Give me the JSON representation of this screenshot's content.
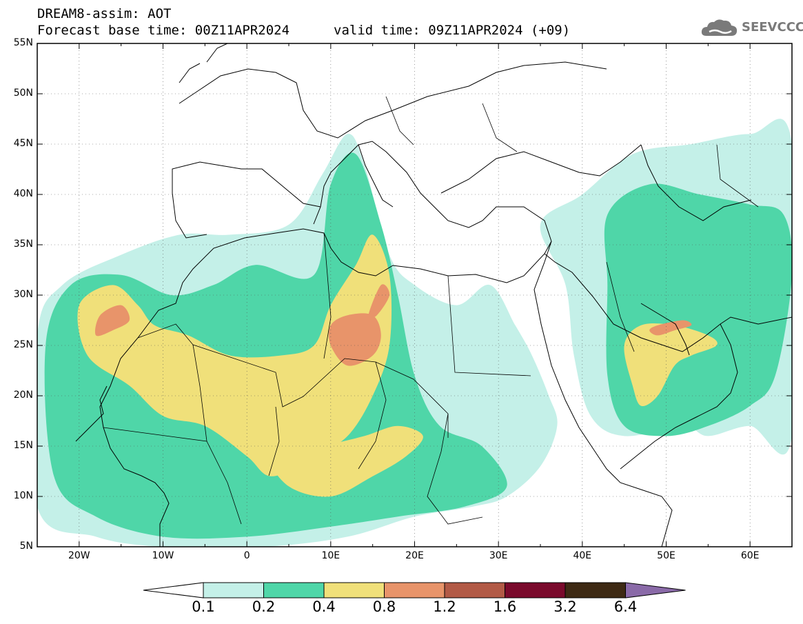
{
  "title": {
    "line1": "DREAM8-assim: AOT",
    "line2_base": "Forecast base time: 00Z11APR2024",
    "line2_valid": "valid time: 09Z11APR2024 (+09)"
  },
  "logo": {
    "text": "SEEVCCC"
  },
  "axes": {
    "lat_labels": [
      "55N",
      "50N",
      "45N",
      "40N",
      "35N",
      "30N",
      "25N",
      "20N",
      "15N",
      "10N",
      "5N"
    ],
    "lon_labels": [
      "20W",
      "10W",
      "0",
      "10E",
      "20E",
      "30E",
      "40E",
      "50E",
      "60E"
    ],
    "lat_range": [
      5,
      55
    ],
    "lon_range": [
      -25,
      65
    ]
  },
  "colorbar": {
    "labels": [
      "0.1",
      "0.2",
      "0.4",
      "0.8",
      "1.2",
      "1.6",
      "3.2",
      "6.4"
    ],
    "colors": [
      "#c4f0e8",
      "#4fd6a8",
      "#f0e07a",
      "#e8946a",
      "#b25a46",
      "#7a0a2c",
      "#3e2a14",
      "#8a6aa8"
    ],
    "under_color": "#ffffff",
    "over_color": "#8a6aa8"
  },
  "chart_data": {
    "type": "heatmap",
    "variable": "AOT",
    "lon_range": [
      -25,
      65
    ],
    "lat_range": [
      5,
      55
    ],
    "levels": [
      0.1,
      0.2,
      0.4,
      0.8,
      1.2,
      1.6,
      3.2,
      6.4
    ],
    "regions": [
      {
        "level": 0.1,
        "polygon": [
          [
            -25,
            26
          ],
          [
            -22,
            31
          ],
          [
            -15,
            34
          ],
          [
            -8,
            36
          ],
          [
            -2,
            36
          ],
          [
            5,
            37
          ],
          [
            9,
            42
          ],
          [
            12,
            46
          ],
          [
            14,
            43
          ],
          [
            17,
            34
          ],
          [
            20,
            31
          ],
          [
            25,
            29
          ],
          [
            29,
            31
          ],
          [
            32,
            27
          ],
          [
            34,
            24
          ],
          [
            36,
            20
          ],
          [
            37,
            17
          ],
          [
            35,
            13
          ],
          [
            31,
            10
          ],
          [
            27,
            9
          ],
          [
            20,
            8
          ],
          [
            12,
            6
          ],
          [
            2,
            5
          ],
          [
            -10,
            5
          ],
          [
            -18,
            6
          ],
          [
            -25,
            9
          ]
        ]
      },
      {
        "level": 0.1,
        "polygon": [
          [
            40,
            40
          ],
          [
            46,
            44
          ],
          [
            53,
            45
          ],
          [
            60,
            46
          ],
          [
            65,
            45
          ],
          [
            65,
            16
          ],
          [
            60,
            17
          ],
          [
            55,
            16
          ],
          [
            52,
            17
          ],
          [
            45,
            16
          ],
          [
            41,
            18
          ],
          [
            39,
            24
          ],
          [
            38,
            31
          ],
          [
            35,
            37
          ]
        ]
      },
      {
        "level": 0.2,
        "polygon": [
          [
            -24,
            25
          ],
          [
            -21,
            31
          ],
          [
            -15,
            32
          ],
          [
            -9,
            30
          ],
          [
            -4,
            31
          ],
          [
            1,
            33
          ],
          [
            8,
            32
          ],
          [
            10,
            41
          ],
          [
            13,
            44
          ],
          [
            16,
            37
          ],
          [
            18,
            30
          ],
          [
            20,
            22
          ],
          [
            23,
            17
          ],
          [
            28,
            15
          ],
          [
            31,
            11
          ],
          [
            26,
            9
          ],
          [
            18,
            8
          ],
          [
            10,
            7
          ],
          [
            0,
            6
          ],
          [
            -10,
            6
          ],
          [
            -18,
            8
          ],
          [
            -23,
            12
          ]
        ]
      },
      {
        "level": 0.2,
        "polygon": [
          [
            43,
            38
          ],
          [
            48,
            41
          ],
          [
            54,
            40
          ],
          [
            60,
            39
          ],
          [
            64,
            38
          ],
          [
            65,
            32
          ],
          [
            63,
            22
          ],
          [
            60,
            19
          ],
          [
            55,
            17
          ],
          [
            50,
            16
          ],
          [
            45,
            17
          ],
          [
            43,
            22
          ],
          [
            43,
            31
          ]
        ]
      },
      {
        "level": 0.4,
        "polygon": [
          [
            -19,
            24
          ],
          [
            -20,
            29
          ],
          [
            -16,
            31
          ],
          [
            -13,
            29
          ],
          [
            -11,
            27
          ],
          [
            -7,
            26
          ],
          [
            -2,
            24
          ],
          [
            4,
            24
          ],
          [
            8,
            25
          ],
          [
            10,
            29
          ],
          [
            13,
            33
          ],
          [
            15,
            36
          ],
          [
            17,
            32
          ],
          [
            17,
            25
          ],
          [
            15,
            20
          ],
          [
            12,
            16
          ],
          [
            8,
            14
          ],
          [
            3,
            12
          ],
          [
            0,
            14
          ],
          [
            -5,
            17
          ],
          [
            -10,
            18
          ],
          [
            -14,
            21
          ]
        ]
      },
      {
        "level": 0.4,
        "polygon": [
          [
            3,
            14
          ],
          [
            5,
            11
          ],
          [
            10,
            10
          ],
          [
            15,
            12
          ],
          [
            19,
            14
          ],
          [
            21,
            16
          ],
          [
            18,
            17
          ],
          [
            14,
            16
          ],
          [
            9,
            15
          ]
        ]
      },
      {
        "level": 0.4,
        "polygon": [
          [
            46,
            21
          ],
          [
            45,
            25
          ],
          [
            47,
            27
          ],
          [
            51,
            27
          ],
          [
            55,
            26
          ],
          [
            56,
            25
          ],
          [
            53,
            24
          ],
          [
            51,
            23
          ],
          [
            49,
            20
          ],
          [
            47,
            19
          ]
        ]
      },
      {
        "level": 0.8,
        "polygon": [
          [
            -18,
            26
          ],
          [
            -17.5,
            28
          ],
          [
            -15,
            29
          ],
          [
            -14,
            27.5
          ],
          [
            -16,
            26.5
          ]
        ]
      },
      {
        "level": 0.8,
        "polygon": [
          [
            10,
            25
          ],
          [
            10,
            27
          ],
          [
            12,
            28
          ],
          [
            15,
            28
          ],
          [
            16,
            26
          ],
          [
            15,
            24
          ],
          [
            12,
            23
          ]
        ]
      },
      {
        "level": 0.8,
        "polygon": [
          [
            14.5,
            28
          ],
          [
            16,
            31
          ],
          [
            17,
            30
          ],
          [
            15.5,
            28
          ]
        ]
      },
      {
        "level": 0.8,
        "polygon": [
          [
            48,
            26.5
          ],
          [
            49,
            27
          ],
          [
            52,
            27.5
          ],
          [
            53,
            27
          ],
          [
            51,
            26.5
          ],
          [
            49,
            26
          ]
        ]
      }
    ]
  }
}
